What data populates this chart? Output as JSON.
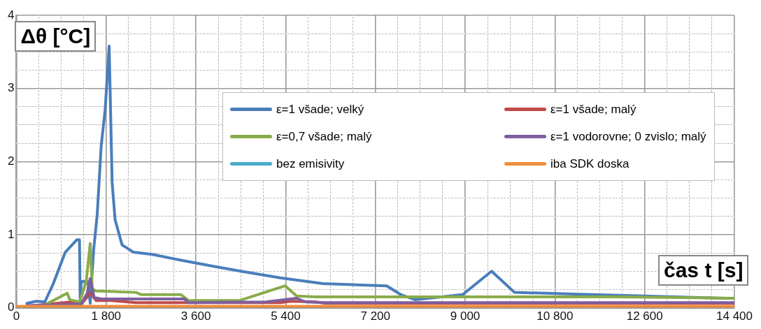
{
  "chart_data": {
    "type": "line",
    "xlabel": "čas t [s]",
    "ylabel": "Δθ [°C]",
    "xlim": [
      0,
      14400
    ],
    "ylim": [
      0,
      4
    ],
    "xticks": [
      0,
      {
        "value": 450,
        "label": null
      },
      {
        "value": 900,
        "label": null
      },
      {
        "value": 1350,
        "label": null
      },
      {
        "value": 1800,
        "label": "1 800"
      },
      {
        "value": 2250,
        "label": null
      },
      {
        "value": 2700,
        "label": null
      },
      {
        "value": 3150,
        "label": null
      },
      {
        "value": 3600,
        "label": "3 600"
      },
      {
        "value": 4050,
        "label": null
      },
      {
        "value": 4500,
        "label": null
      },
      {
        "value": 4950,
        "label": null
      },
      {
        "value": 5400,
        "label": "5 400"
      },
      {
        "value": 5850,
        "label": null
      },
      {
        "value": 6300,
        "label": null
      },
      {
        "value": 6750,
        "label": null
      },
      {
        "value": 7200,
        "label": "7 200"
      },
      {
        "value": 7650,
        "label": null
      },
      {
        "value": 8100,
        "label": null
      },
      {
        "value": 8550,
        "label": null
      },
      {
        "value": 9000,
        "label": "9 000"
      },
      {
        "value": 9450,
        "label": null
      },
      {
        "value": 9900,
        "label": null
      },
      {
        "value": 10350,
        "label": null
      },
      {
        "value": 10800,
        "label": "10 800"
      },
      {
        "value": 11250,
        "label": null
      },
      {
        "value": 11700,
        "label": null
      },
      {
        "value": 12150,
        "label": null
      },
      {
        "value": 12600,
        "label": "12 600"
      },
      {
        "value": 13050,
        "label": null
      },
      {
        "value": 13500,
        "label": null
      },
      {
        "value": 13950,
        "label": null
      },
      {
        "value": 14400,
        "label": "14 400"
      }
    ],
    "yticks": [
      0,
      {
        "value": 0.25,
        "label": null
      },
      {
        "value": 0.5,
        "label": null
      },
      {
        "value": 0.75,
        "label": null
      },
      1,
      {
        "value": 1.25,
        "label": null
      },
      {
        "value": 1.5,
        "label": null
      },
      {
        "value": 1.75,
        "label": null
      },
      2,
      {
        "value": 2.25,
        "label": null
      },
      {
        "value": 2.5,
        "label": null
      },
      {
        "value": 2.75,
        "label": null
      },
      3,
      {
        "value": 3.25,
        "label": null
      },
      {
        "value": 3.5,
        "label": null
      },
      {
        "value": 3.75,
        "label": null
      },
      4
    ],
    "grid": true,
    "legend": "right",
    "line_style": "solid",
    "marker": "none",
    "series": [
      {
        "name": "ε=1 všade; velký",
        "color": "#4a7ebb",
        "x": [
          210,
          400,
          570,
          740,
          980,
          1210,
          1265,
          1280,
          1300,
          1420,
          1440,
          1480,
          1550,
          1620,
          1700,
          1780,
          1860,
          1920,
          1980,
          2120,
          2350,
          2730,
          3300,
          4010,
          4500,
          5290,
          6145,
          7425,
          7710,
          8000,
          8950,
          9530,
          9990,
          11550,
          12590,
          14210,
          14400
        ],
        "values": [
          0.06,
          0.09,
          0.08,
          0.33,
          0.76,
          0.93,
          0.93,
          0.06,
          0.36,
          0.36,
          0.33,
          0.06,
          0.8,
          1.27,
          2.21,
          2.71,
          3.58,
          1.71,
          1.2,
          0.86,
          0.76,
          0.73,
          0.65,
          0.56,
          0.5,
          0.41,
          0.33,
          0.3,
          0.18,
          0.11,
          0.18,
          0.5,
          0.21,
          0.18,
          0.16,
          0.13,
          0.13
        ]
      },
      {
        "name": "ε=1 všade; malý",
        "color": "#be4b48",
        "x": [
          210,
          1100,
          1300,
          1480,
          1600,
          1900,
          2400,
          5300,
          5500,
          6000,
          6200,
          14400
        ],
        "values": [
          0.02,
          0.08,
          0.05,
          0.2,
          0.1,
          0.1,
          0.07,
          0.07,
          0.09,
          0.08,
          0.06,
          0.06
        ]
      },
      {
        "name": "ε=0,7 všade; malý",
        "color": "#8aab4b",
        "x": [
          600,
          1020,
          1070,
          1270,
          1400,
          1480,
          1520,
          1590,
          2400,
          2500,
          3300,
          3450,
          4010,
          4480,
          5390,
          5620,
          6000,
          9000,
          12000,
          14400
        ],
        "values": [
          0.05,
          0.2,
          0.11,
          0.08,
          0.36,
          0.88,
          0.26,
          0.23,
          0.21,
          0.18,
          0.18,
          0.1,
          0.1,
          0.1,
          0.3,
          0.16,
          0.15,
          0.15,
          0.15,
          0.13
        ]
      },
      {
        "name": "ε=1 vodorovne; 0 zvislo; malý",
        "color": "#7d5f9e",
        "x": [
          210,
          1300,
          1420,
          1480,
          1560,
          1700,
          3370,
          3450,
          5000,
          5620,
          5800,
          6200,
          14400
        ],
        "values": [
          0.03,
          0.05,
          0.2,
          0.4,
          0.14,
          0.12,
          0.12,
          0.07,
          0.08,
          0.13,
          0.08,
          0.07,
          0.07
        ]
      },
      {
        "name": "bez emisivity",
        "color": "#4aaccc"
      },
      {
        "name": "iba SDK doska",
        "color": "#f08d3c",
        "x": [
          0,
          14400
        ],
        "values": [
          0.02,
          0.02
        ]
      }
    ]
  }
}
